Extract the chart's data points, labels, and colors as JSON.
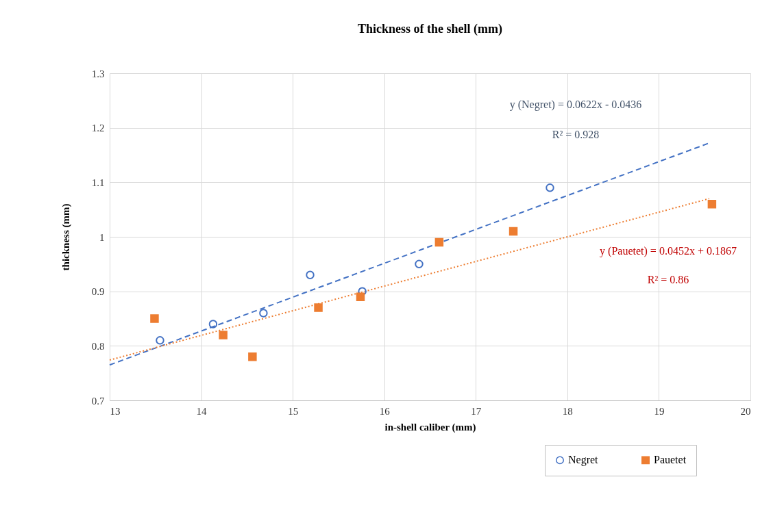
{
  "chart_data": {
    "type": "scatter",
    "title": "Thickness of the shell (mm)",
    "xlabel": "in-shell caliber (mm)",
    "ylabel": "thickness (mm)",
    "xlim": [
      13,
      20
    ],
    "xticks": [
      13,
      14,
      15,
      16,
      17,
      18,
      19,
      20
    ],
    "ylim": [
      0.7,
      1.3
    ],
    "yticks": [
      0.7,
      0.8,
      0.9,
      1,
      1.1,
      1.2,
      1.3
    ],
    "grid": true,
    "legend": "bottom right",
    "series": [
      {
        "name": "Negret",
        "type": "scatter",
        "marker": "circle",
        "color": "#4472c4",
        "x": [
          13.55,
          14.13,
          14.68,
          15.19,
          15.76,
          16.38,
          17.81
        ],
        "values": [
          0.81,
          0.84,
          0.86,
          0.93,
          0.9,
          0.95,
          1.09
        ]
      },
      {
        "name": "Pauetet",
        "type": "scatter",
        "marker": "square",
        "color": "#ed7d31",
        "x": [
          13.49,
          14.24,
          14.56,
          15.28,
          15.74,
          16.6,
          17.41,
          19.58
        ],
        "values": [
          0.85,
          0.82,
          0.78,
          0.87,
          0.89,
          0.99,
          1.01,
          1.06
        ]
      },
      {
        "type": "line",
        "line_style": "dashed",
        "color": "#4472c4",
        "x": [
          13,
          19.55
        ],
        "values": [
          0.765,
          1.172
        ]
      },
      {
        "type": "line",
        "line_style": "dotted",
        "color": "#ed7d31",
        "x": [
          13,
          19.55
        ],
        "values": [
          0.774,
          1.07
        ]
      }
    ],
    "annotations": [
      "y (Negret) = 0.0622x - 0.0436",
      "R² = 0.928",
      "y (Pauetet) = 0.0452x + 0.1867",
      "R² = 0.86"
    ]
  }
}
